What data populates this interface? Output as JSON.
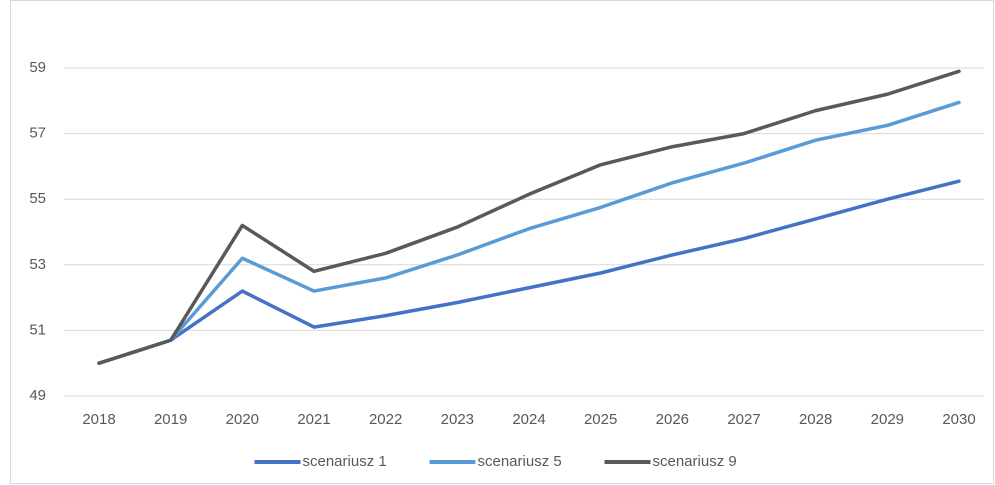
{
  "chart_data": {
    "type": "line",
    "categories": [
      "2018",
      "2019",
      "2020",
      "2021",
      "2022",
      "2023",
      "2024",
      "2025",
      "2026",
      "2027",
      "2028",
      "2029",
      "2030"
    ],
    "series": [
      {
        "name": "scenariusz 1",
        "color": "#4472c4",
        "values": [
          50.0,
          50.7,
          52.2,
          51.1,
          51.45,
          51.85,
          52.3,
          52.75,
          53.3,
          53.8,
          54.4,
          55.0,
          55.55
        ]
      },
      {
        "name": "scenariusz 5",
        "color": "#5b9bd5",
        "values": [
          50.0,
          50.7,
          53.2,
          52.2,
          52.6,
          53.3,
          54.1,
          54.75,
          55.5,
          56.1,
          56.8,
          57.25,
          57.95
        ]
      },
      {
        "name": "scenariusz 9",
        "color": "#595959",
        "values": [
          50.0,
          50.7,
          54.2,
          52.8,
          53.35,
          54.15,
          55.15,
          56.05,
          56.6,
          57.0,
          57.7,
          58.2,
          58.9
        ]
      }
    ],
    "ylim": [
      49,
      60
    ],
    "yticks": [
      49,
      51,
      53,
      55,
      57,
      59
    ],
    "grid": true,
    "legend": "bottom"
  }
}
